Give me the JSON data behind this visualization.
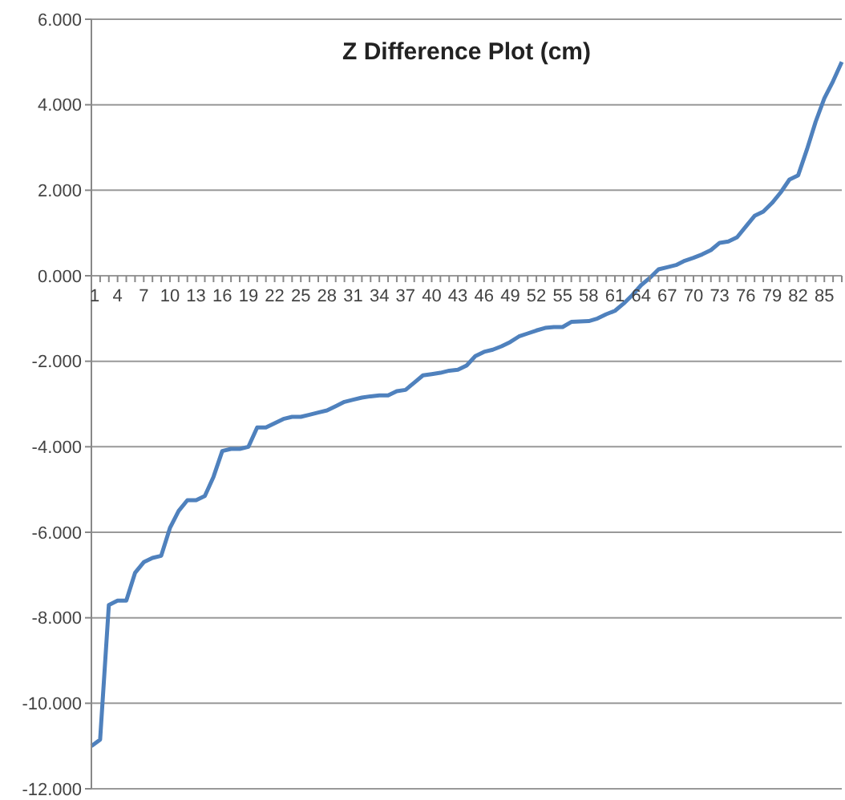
{
  "chart_data": {
    "type": "line",
    "title": "Z Difference Plot (cm)",
    "categories": [
      "1",
      null,
      null,
      "4",
      null,
      null,
      "7",
      null,
      null,
      "10",
      null,
      null,
      "13",
      null,
      null,
      "16",
      null,
      null,
      "19",
      null,
      null,
      "22",
      null,
      null,
      "25",
      null,
      null,
      "28",
      null,
      null,
      "31",
      null,
      null,
      "34",
      null,
      null,
      "37",
      null,
      null,
      "40",
      null,
      null,
      "43",
      null,
      null,
      "46",
      null,
      null,
      "49",
      null,
      null,
      "52",
      null,
      null,
      "55",
      null,
      null,
      "58",
      null,
      null,
      "61",
      null,
      null,
      "64",
      null,
      null,
      "67",
      null,
      null,
      "70",
      null,
      null,
      "73",
      null,
      null,
      "76",
      null,
      null,
      "79",
      null,
      null,
      "82",
      null,
      null,
      "85",
      null,
      null
    ],
    "series": [
      {
        "color": "#4f81bd",
        "values": [
          -11.0,
          -10.85,
          -7.7,
          -7.6,
          -7.6,
          -6.95,
          -6.7,
          -6.6,
          -6.55,
          -5.9,
          -5.5,
          -5.25,
          -5.25,
          -5.15,
          -4.7,
          -4.1,
          -4.05,
          -4.05,
          -4.0,
          -3.55,
          -3.55,
          -3.45,
          -3.35,
          -3.3,
          -3.3,
          -3.25,
          -3.2,
          -3.15,
          -3.05,
          -2.95,
          -2.9,
          -2.85,
          -2.82,
          -2.8,
          -2.8,
          -2.7,
          -2.67,
          -2.5,
          -2.33,
          -2.3,
          -2.27,
          -2.22,
          -2.2,
          -2.1,
          -1.88,
          -1.78,
          -1.73,
          -1.65,
          -1.55,
          -1.42,
          -1.35,
          -1.28,
          -1.22,
          -1.2,
          -1.2,
          -1.08,
          -1.07,
          -1.06,
          -1.0,
          -0.9,
          -0.82,
          -0.65,
          -0.45,
          -0.22,
          -0.05,
          0.15,
          0.2,
          0.25,
          0.35,
          0.42,
          0.5,
          0.6,
          0.77,
          0.8,
          0.9,
          1.15,
          1.4,
          1.5,
          1.7,
          1.95,
          2.25,
          2.35,
          2.95,
          3.6,
          4.15,
          4.55,
          5.0
        ]
      }
    ],
    "ylim": [
      -12,
      6
    ],
    "yticks": [
      {
        "value": -12,
        "label": "-12.000"
      },
      {
        "value": -10,
        "label": "-10.000"
      },
      {
        "value": -8,
        "label": "-8.000"
      },
      {
        "value": -6,
        "label": "-6.000"
      },
      {
        "value": -4,
        "label": "-4.000"
      },
      {
        "value": -2,
        "label": "-2.000"
      },
      {
        "value": 0,
        "label": "0.000"
      },
      {
        "value": 2,
        "label": "2.000"
      },
      {
        "value": 4,
        "label": "4.000"
      },
      {
        "value": 6,
        "label": "6.000"
      }
    ],
    "grid": "y",
    "legend": false,
    "marker": "none",
    "line_style": "solid"
  }
}
